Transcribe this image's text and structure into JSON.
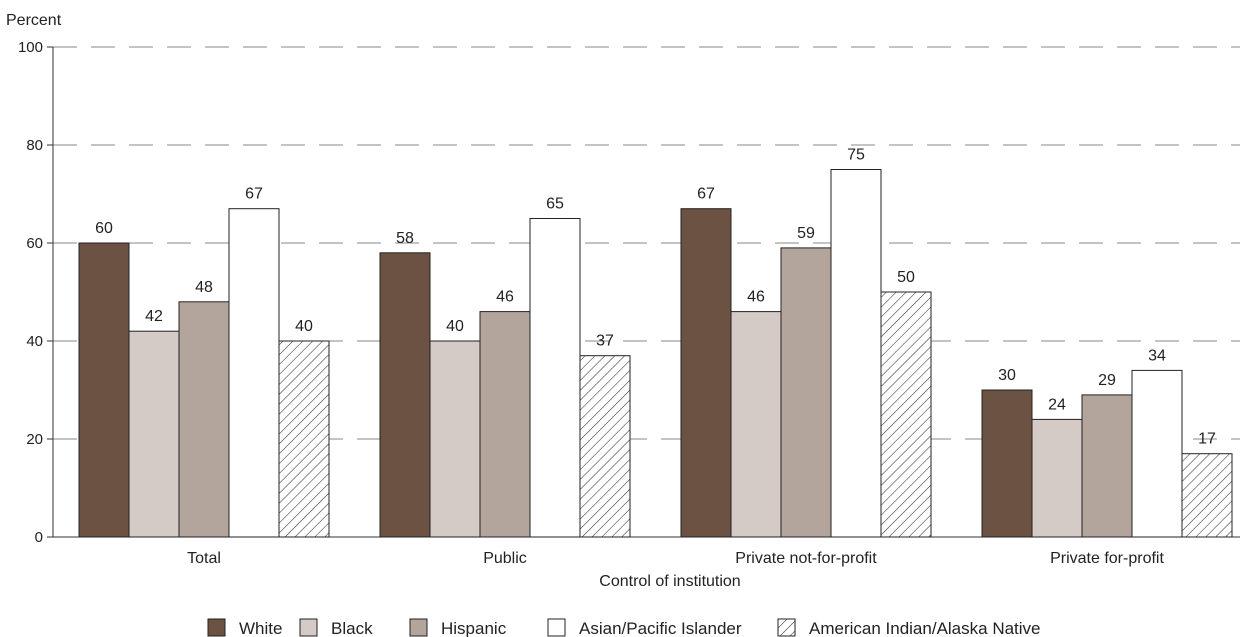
{
  "chart_data": {
    "type": "bar",
    "xlabel": "Control of institution",
    "ylabel": "Percent",
    "ylim": [
      0,
      100
    ],
    "yticks": [
      0,
      20,
      40,
      60,
      80,
      100
    ],
    "grid": true,
    "grid_style": "dashed",
    "legend_position": "bottom",
    "categories": [
      "Total",
      "Public",
      "Private not-for-profit",
      "Private for-profit"
    ],
    "series": [
      {
        "name": "White",
        "values": [
          60,
          58,
          67,
          30
        ],
        "color": "#6b5242",
        "pattern": "solid"
      },
      {
        "name": "Black",
        "values": [
          42,
          40,
          46,
          24
        ],
        "color": "#d4cac6",
        "pattern": "solid"
      },
      {
        "name": "Hispanic",
        "values": [
          48,
          46,
          59,
          29
        ],
        "color": "#b3a59c",
        "pattern": "solid"
      },
      {
        "name": "Asian/Pacific Islander",
        "values": [
          67,
          65,
          75,
          34
        ],
        "color": "#ffffff",
        "pattern": "solid"
      },
      {
        "name": "American Indian/Alaska Native",
        "values": [
          40,
          37,
          50,
          17
        ],
        "color": "#ffffff",
        "pattern": "hatch"
      }
    ]
  }
}
